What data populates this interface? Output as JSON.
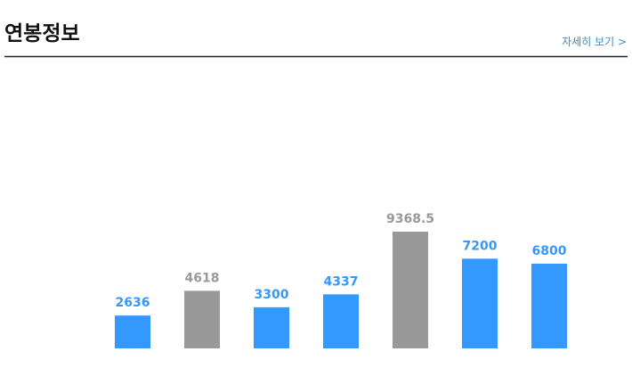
{
  "header": {
    "title": "연봉정보",
    "link": "자세히 보기 >"
  },
  "chart_data": {
    "type": "bar",
    "values": [
      2636,
      4618,
      3300,
      4337,
      9368.5,
      7200,
      6800
    ],
    "colors": [
      "#3399ff",
      "#999999",
      "#3399ff",
      "#3399ff",
      "#999999",
      "#3399ff",
      "#3399ff"
    ]
  }
}
